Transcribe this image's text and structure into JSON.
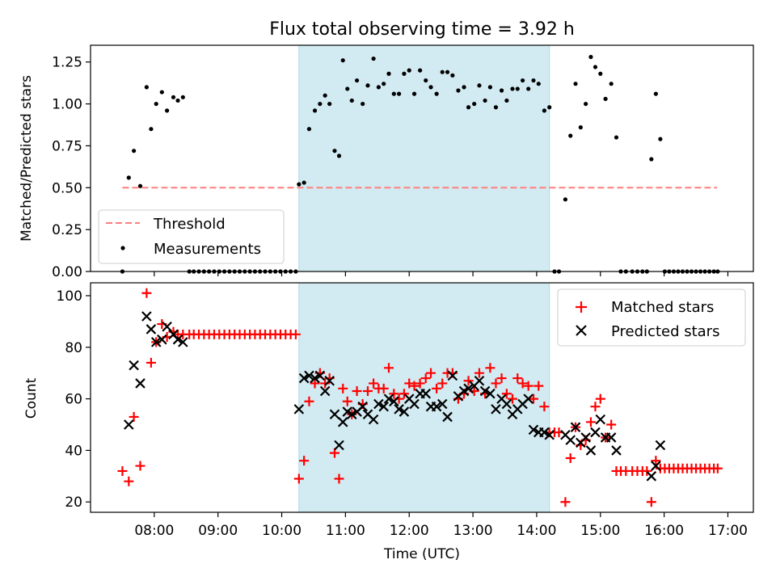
{
  "title": "Flux total observing time = 3.92 h",
  "x_tick_labels": [
    "08:00",
    "09:00",
    "10:00",
    "11:00",
    "12:00",
    "13:00",
    "14:00",
    "15:00",
    "16:00",
    "17:00"
  ],
  "colors": {
    "shade": "#add8e6",
    "threshold": "#ff7f7f",
    "matched": "#ff0000",
    "predicted": "#000000",
    "measurements": "#000000"
  },
  "chart_data": [
    {
      "type": "scatter",
      "panel": "top",
      "title": "Flux total observing time = 3.92 h",
      "xlabel": "",
      "ylabel": "Matched/Predicted stars",
      "xlim": [
        7.0,
        17.4
      ],
      "ylim": [
        0,
        1.35
      ],
      "y_ticks": [
        0.0,
        0.25,
        0.5,
        0.75,
        1.0,
        1.25
      ],
      "y_tick_labels": [
        "0.00",
        "0.25",
        "0.50",
        "0.75",
        "1.00",
        "1.25"
      ],
      "shaded_interval": [
        10.27,
        14.2
      ],
      "legend": {
        "position": "lower-left",
        "entries": [
          "Threshold",
          "Measurements"
        ]
      },
      "threshold": {
        "name": "Threshold",
        "x": [
          7.5,
          16.83
        ],
        "y": 0.5
      },
      "measurements": {
        "name": "Measurements",
        "x": [
          7.5,
          7.6,
          7.68,
          7.78,
          7.88,
          7.95,
          8.03,
          8.12,
          8.2,
          8.3,
          8.37,
          8.45,
          8.55,
          8.62,
          8.7,
          8.78,
          8.86,
          8.94,
          9.02,
          9.1,
          9.18,
          9.26,
          9.34,
          9.42,
          9.5,
          9.58,
          9.66,
          9.74,
          9.82,
          9.9,
          9.98,
          10.06,
          10.14,
          10.22,
          10.27,
          10.35,
          10.43,
          10.52,
          10.6,
          10.68,
          10.75,
          10.83,
          10.9,
          10.96,
          11.03,
          11.1,
          11.18,
          11.27,
          11.35,
          11.44,
          11.52,
          11.6,
          11.68,
          11.76,
          11.84,
          11.92,
          12.0,
          12.08,
          12.17,
          12.26,
          12.34,
          12.43,
          12.52,
          12.6,
          12.68,
          12.77,
          12.86,
          12.93,
          13.02,
          13.1,
          13.19,
          13.27,
          13.36,
          13.45,
          13.53,
          13.62,
          13.7,
          13.78,
          13.87,
          13.95,
          14.03,
          14.12,
          14.2,
          14.28,
          14.35,
          14.45,
          14.53,
          14.61,
          14.69,
          14.77,
          14.85,
          14.92,
          15.0,
          15.08,
          15.17,
          15.25,
          15.32,
          15.4,
          15.5,
          15.58,
          15.66,
          15.73,
          15.8,
          15.87,
          15.94,
          16.01,
          16.08,
          16.15,
          16.22,
          16.29,
          16.36,
          16.43,
          16.5,
          16.57,
          16.64,
          16.71,
          16.78,
          16.84
        ],
        "y": [
          0.0,
          0.56,
          0.72,
          0.51,
          1.1,
          0.85,
          1.0,
          1.07,
          0.96,
          1.04,
          1.02,
          1.04,
          0.0,
          0.0,
          0.0,
          0.0,
          0.0,
          0.0,
          0.0,
          0.0,
          0.0,
          0.0,
          0.0,
          0.0,
          0.0,
          0.0,
          0.0,
          0.0,
          0.0,
          0.0,
          0.0,
          0.0,
          0.0,
          0.0,
          0.52,
          0.53,
          0.85,
          0.96,
          1.0,
          1.05,
          1.0,
          0.72,
          0.69,
          1.26,
          1.09,
          1.02,
          1.14,
          1.0,
          1.11,
          1.27,
          1.1,
          1.12,
          1.18,
          1.06,
          1.06,
          1.18,
          1.2,
          1.06,
          1.2,
          1.14,
          1.1,
          1.06,
          1.19,
          1.19,
          1.17,
          1.08,
          1.1,
          0.98,
          1.0,
          1.11,
          1.02,
          1.1,
          0.98,
          1.08,
          1.02,
          1.09,
          1.09,
          1.14,
          1.09,
          1.14,
          1.12,
          0.96,
          0.98,
          0.0,
          0.0,
          0.43,
          0.81,
          1.12,
          0.86,
          1.0,
          1.28,
          1.22,
          1.18,
          1.03,
          1.12,
          0.8,
          0.0,
          0.0,
          0.0,
          0.0,
          0.0,
          0.0,
          0.67,
          1.06,
          0.79,
          0.0,
          0.0,
          0.0,
          0.0,
          0.0,
          0.0,
          0.0,
          0.0,
          0.0,
          0.0,
          0.0,
          0.0,
          0.0
        ]
      }
    },
    {
      "type": "scatter",
      "panel": "bottom",
      "xlabel": "Time (UTC)",
      "ylabel": "Count",
      "xlim": [
        7.0,
        17.4
      ],
      "ylim": [
        16,
        105
      ],
      "y_ticks": [
        20,
        40,
        60,
        80,
        100
      ],
      "y_tick_labels": [
        "20",
        "40",
        "60",
        "80",
        "100"
      ],
      "x_ticks": [
        8,
        9,
        10,
        11,
        12,
        13,
        14,
        15,
        16,
        17
      ],
      "shaded_interval": [
        10.27,
        14.2
      ],
      "legend": {
        "position": "upper-right",
        "entries": [
          "Matched stars",
          "Predicted stars"
        ]
      },
      "series": [
        {
          "name": "Matched stars",
          "marker": "plus",
          "x": [
            7.5,
            7.6,
            7.68,
            7.78,
            7.88,
            7.95,
            8.03,
            8.12,
            8.2,
            8.3,
            8.37,
            8.45,
            8.55,
            8.62,
            8.7,
            8.78,
            8.86,
            8.94,
            9.02,
            9.1,
            9.18,
            9.26,
            9.34,
            9.42,
            9.5,
            9.58,
            9.66,
            9.74,
            9.82,
            9.9,
            9.98,
            10.06,
            10.14,
            10.22,
            10.27,
            10.35,
            10.43,
            10.52,
            10.6,
            10.68,
            10.75,
            10.83,
            10.9,
            10.96,
            11.03,
            11.1,
            11.18,
            11.27,
            11.35,
            11.44,
            11.52,
            11.6,
            11.68,
            11.76,
            11.84,
            11.92,
            12.0,
            12.08,
            12.17,
            12.26,
            12.34,
            12.43,
            12.52,
            12.6,
            12.68,
            12.77,
            12.86,
            12.93,
            13.02,
            13.1,
            13.19,
            13.27,
            13.36,
            13.45,
            13.53,
            13.62,
            13.7,
            13.78,
            13.87,
            13.95,
            14.03,
            14.12,
            14.2,
            14.28,
            14.35,
            14.45,
            14.53,
            14.61,
            14.69,
            14.77,
            14.85,
            14.92,
            15.0,
            15.08,
            15.17,
            15.25,
            15.32,
            15.4,
            15.5,
            15.58,
            15.66,
            15.73,
            15.8,
            15.87,
            15.94,
            16.01,
            16.08,
            16.15,
            16.22,
            16.29,
            16.36,
            16.43,
            16.5,
            16.57,
            16.64,
            16.71,
            16.78,
            16.84
          ],
          "y": [
            32,
            28,
            53,
            34,
            101,
            74,
            82,
            89,
            84,
            86,
            85,
            85,
            85,
            85,
            85,
            85,
            85,
            85,
            85,
            85,
            85,
            85,
            85,
            85,
            85,
            85,
            85,
            85,
            85,
            85,
            85,
            85,
            85,
            85,
            29,
            36,
            59,
            66,
            70,
            66,
            68,
            39,
            29,
            64,
            59,
            54,
            63,
            58,
            63,
            66,
            64,
            64,
            72,
            62,
            60,
            62,
            66,
            65,
            66,
            68,
            70,
            64,
            66,
            70,
            70,
            60,
            62,
            67,
            63,
            70,
            62,
            72,
            66,
            68,
            62,
            60,
            68,
            66,
            65,
            60,
            65,
            57,
            47,
            47,
            47,
            20,
            37,
            49,
            42,
            44,
            51,
            57,
            60,
            45,
            50,
            32,
            32,
            32,
            32,
            32,
            32,
            32,
            20,
            36,
            33,
            33,
            33,
            33,
            33,
            33,
            33,
            33,
            33,
            33,
            33,
            33,
            33,
            33
          ]
        },
        {
          "name": "Predicted stars",
          "marker": "x",
          "x": [
            7.6,
            7.68,
            7.78,
            7.88,
            7.95,
            8.03,
            8.12,
            8.2,
            8.3,
            8.37,
            8.45,
            10.27,
            10.35,
            10.43,
            10.52,
            10.6,
            10.68,
            10.75,
            10.83,
            10.9,
            10.96,
            11.03,
            11.1,
            11.18,
            11.27,
            11.35,
            11.44,
            11.52,
            11.6,
            11.68,
            11.76,
            11.84,
            11.92,
            12.0,
            12.08,
            12.17,
            12.26,
            12.34,
            12.43,
            12.52,
            12.6,
            12.68,
            12.77,
            12.86,
            12.93,
            13.02,
            13.1,
            13.19,
            13.27,
            13.36,
            13.45,
            13.53,
            13.62,
            13.7,
            13.78,
            13.87,
            13.95,
            14.03,
            14.12,
            14.2,
            14.45,
            14.53,
            14.61,
            14.69,
            14.77,
            14.85,
            14.92,
            15.0,
            15.08,
            15.17,
            15.25,
            15.8,
            15.87,
            15.94
          ],
          "y": [
            50,
            73,
            66,
            92,
            87,
            82,
            83,
            88,
            85,
            83,
            82,
            56,
            68,
            69,
            68,
            69,
            63,
            67,
            54,
            42,
            51,
            55,
            54,
            55,
            57,
            54,
            52,
            58,
            57,
            60,
            59,
            56,
            55,
            60,
            58,
            62,
            62,
            57,
            57,
            58,
            53,
            69,
            61,
            63,
            64,
            65,
            67,
            63,
            62,
            56,
            60,
            58,
            54,
            56,
            58,
            60,
            48,
            47,
            47,
            46,
            46,
            44,
            49,
            43,
            45,
            40,
            47,
            52,
            45,
            45,
            40,
            30,
            34,
            42
          ]
        }
      ]
    }
  ]
}
